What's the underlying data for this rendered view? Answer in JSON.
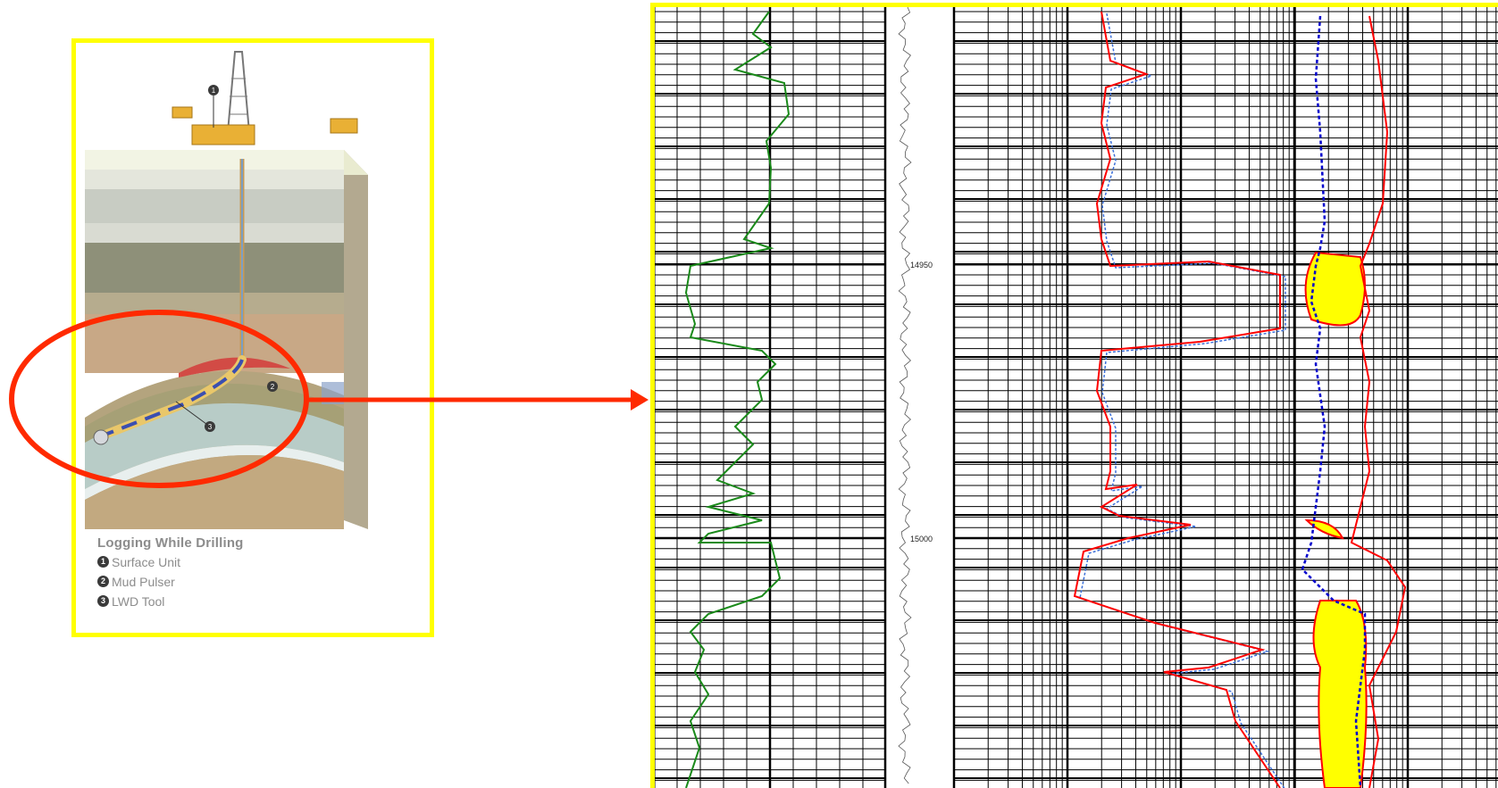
{
  "illustration": {
    "title": "Logging While Drilling",
    "markers": [
      {
        "number": "1",
        "label": "Surface Unit"
      },
      {
        "number": "2",
        "label": "Mud Pulser"
      },
      {
        "number": "3",
        "label": "LWD Tool"
      }
    ]
  },
  "well_log": {
    "depth_labels": [
      "14950",
      "15000"
    ],
    "colors": {
      "gamma_ray": "#1a8a1a",
      "resistivity_deep": "#ff0000",
      "resistivity_shallow": "#3b6fd9",
      "porosity_neutron": "#0000cc",
      "porosity_density": "#ff0000",
      "crossover_fill": "#ffff00",
      "grid": "#000000"
    }
  },
  "colors": {
    "highlight_border": "#ffff00",
    "callout": "#ff2a00"
  }
}
